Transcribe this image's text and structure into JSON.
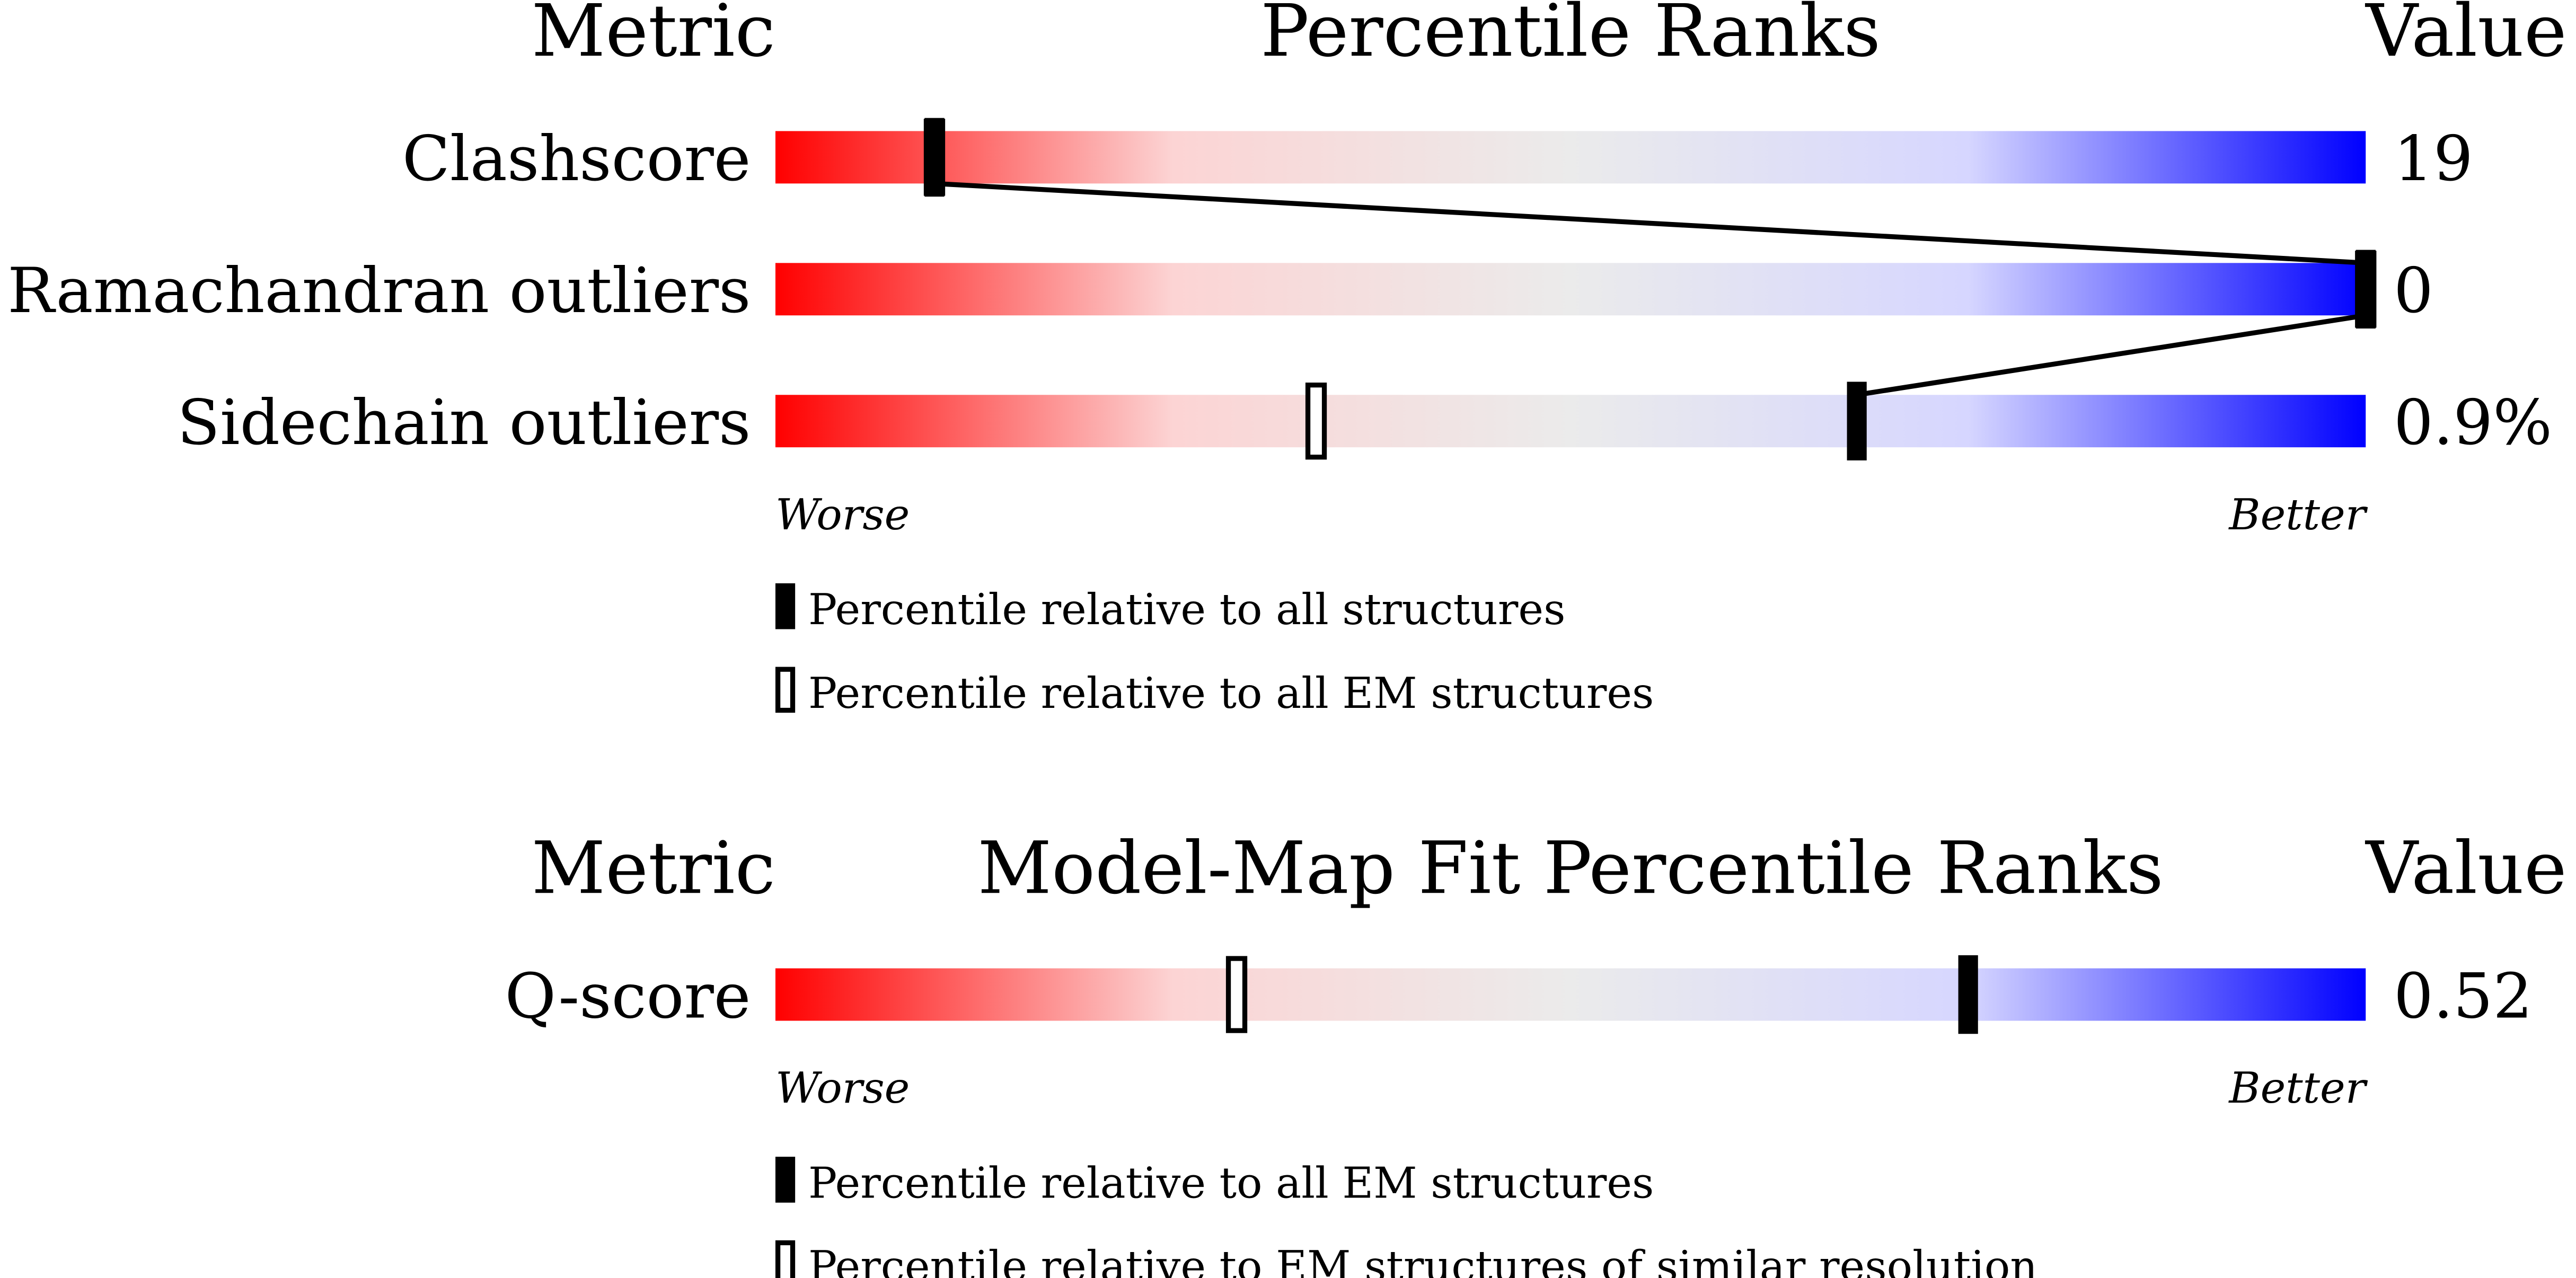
{
  "chart_data": [
    {
      "type": "percentile-slider",
      "header": {
        "metric": "Metric",
        "title": "Percentile Ranks",
        "value": "Value"
      },
      "categories": [
        "Clashscore",
        "Ramachandran outliers",
        "Sidechain outliers"
      ],
      "values": [
        19,
        0,
        0.9
      ],
      "value_labels": [
        "19",
        "0",
        "0.9%"
      ],
      "series": [
        {
          "name": "Percentile relative to all structures",
          "style": "filled",
          "color": "#000000",
          "values": [
            10,
            100,
            68
          ]
        },
        {
          "name": "Percentile relative to all EM structures",
          "style": "open",
          "color": "#000000",
          "values": [
            10,
            100,
            34
          ]
        }
      ],
      "xlim": [
        0,
        100
      ],
      "axis_labels": {
        "low": "Worse",
        "high": "Better"
      },
      "gradient": [
        "#ff0000",
        "#fcd4d4",
        "#ebebeb",
        "#d6d6ff",
        "#0000ff"
      ]
    },
    {
      "type": "percentile-slider",
      "header": {
        "metric": "Metric",
        "title": "Model-Map Fit Percentile Ranks",
        "value": "Value"
      },
      "categories": [
        "Q-score"
      ],
      "values": [
        0.52
      ],
      "value_labels": [
        "0.52"
      ],
      "series": [
        {
          "name": "Percentile relative to all EM structures",
          "style": "filled",
          "color": "#000000",
          "values": [
            75
          ]
        },
        {
          "name": "Percentile relative to EM structures of similar resolution",
          "style": "open",
          "color": "#000000",
          "values": [
            29
          ]
        }
      ],
      "xlim": [
        0,
        100
      ],
      "axis_labels": {
        "low": "Worse",
        "high": "Better"
      },
      "gradient": [
        "#ff0000",
        "#fcd4d4",
        "#ebebeb",
        "#d6d6ff",
        "#0000ff"
      ]
    }
  ]
}
